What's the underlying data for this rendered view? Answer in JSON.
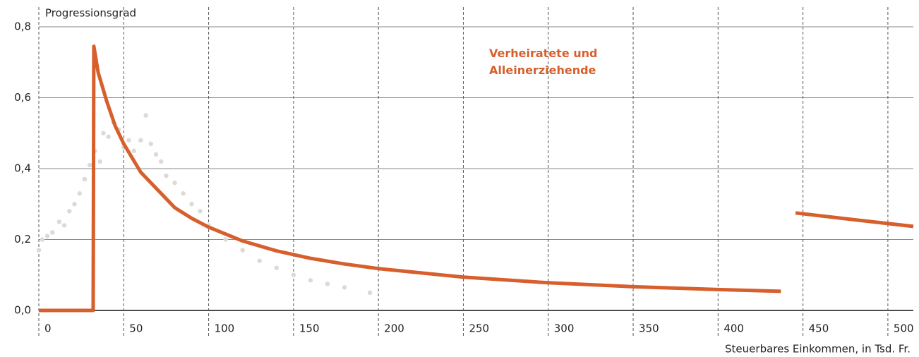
{
  "chart_data": {
    "type": "line",
    "y_label": "Progressionsgrad",
    "x_label": "Steuerbares Einkommen, in Tsd. Fr.",
    "xlim": [
      0,
      515
    ],
    "ylim": [
      0,
      0.8
    ],
    "xticks": [
      0,
      50,
      100,
      150,
      200,
      250,
      300,
      350,
      400,
      450,
      500
    ],
    "yticks": [
      {
        "value": 0,
        "label": "0,0"
      },
      {
        "value": 0.2,
        "label": "0,2"
      },
      {
        "value": 0.4,
        "label": "0,4"
      },
      {
        "value": 0.6,
        "label": "0,6"
      },
      {
        "value": 0.8,
        "label": "0,8"
      }
    ],
    "grid": true,
    "series": [
      {
        "kind": "scatter",
        "color": "#dcdad5",
        "x": [
          0,
          2,
          5,
          8,
          12,
          15,
          18,
          21,
          24,
          27,
          30,
          33,
          36,
          38,
          41,
          44,
          47,
          50,
          53,
          56,
          60,
          63,
          66,
          69,
          72,
          75,
          80,
          85,
          90,
          95,
          100,
          110,
          120,
          130,
          140,
          150,
          160,
          170,
          180,
          195
        ],
        "values": [
          0.17,
          0.2,
          0.21,
          0.22,
          0.25,
          0.24,
          0.28,
          0.3,
          0.33,
          0.37,
          0.41,
          0.45,
          0.42,
          0.5,
          0.49,
          0.53,
          0.51,
          0.46,
          0.48,
          0.45,
          0.48,
          0.55,
          0.47,
          0.44,
          0.42,
          0.38,
          0.36,
          0.33,
          0.3,
          0.28,
          0.24,
          0.2,
          0.17,
          0.14,
          0.12,
          0.1,
          0.085,
          0.075,
          0.065,
          0.05
        ]
      },
      {
        "kind": "line",
        "name": "Verheiratete und Alleinerziehende",
        "color": "#d65f2c",
        "x": [
          0,
          32,
          32.4,
          35,
          40,
          45,
          50,
          60,
          70,
          80,
          90,
          100,
          120,
          140,
          160,
          180,
          200,
          250,
          300,
          350,
          400,
          437,
          441,
          445.6,
          480,
          515
        ],
        "values": [
          0,
          0,
          0.745,
          0.67,
          0.59,
          0.52,
          0.47,
          0.39,
          0.34,
          0.29,
          0.26,
          0.235,
          0.196,
          0.168,
          0.147,
          0.131,
          0.118,
          0.094,
          0.078,
          0.067,
          0.059,
          0.054,
          null,
          0.275,
          0.256,
          0.237
        ]
      }
    ]
  }
}
